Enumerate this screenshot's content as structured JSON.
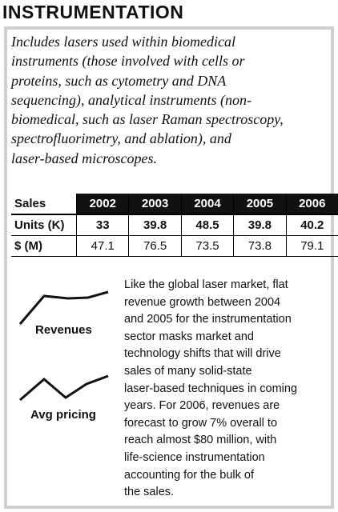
{
  "title": "INSTRUMENTATION",
  "intro": [
    "Includes lasers used within biomedical",
    "instruments (those involved with cells or",
    "proteins, such as cytometry and DNA",
    "sequencing), analytical instruments (non-",
    "biomedical, such as laser Raman spectroscopy,",
    "spectrofluorimetry, and ablation), and",
    "laser-based microscopes."
  ],
  "table": {
    "header": [
      "Sales",
      "2002",
      "2003",
      "2004",
      "2005",
      "2006"
    ],
    "rows": [
      [
        "Units (K)",
        "33",
        "39.8",
        "48.5",
        "39.8",
        "40.2"
      ],
      [
        "$ (M)",
        "47.1",
        "76.5",
        "73.5",
        "73.8",
        "79.1"
      ]
    ]
  },
  "icons": [
    "Revenues",
    "Avg pricing"
  ],
  "body": [
    "Like the global laser market, flat",
    "revenue growth between 2004",
    "and 2005 for the instrumentation",
    "sector masks market and",
    "technology shifts that will drive",
    "sales of many solid-state",
    "laser-based techniques in coming",
    "years. For 2006, revenues are",
    "forecast to grow 7% overall to",
    "reach almost $80 million, with",
    "life-science instrumentation",
    "accounting for the bulk of",
    "the sales."
  ]
}
